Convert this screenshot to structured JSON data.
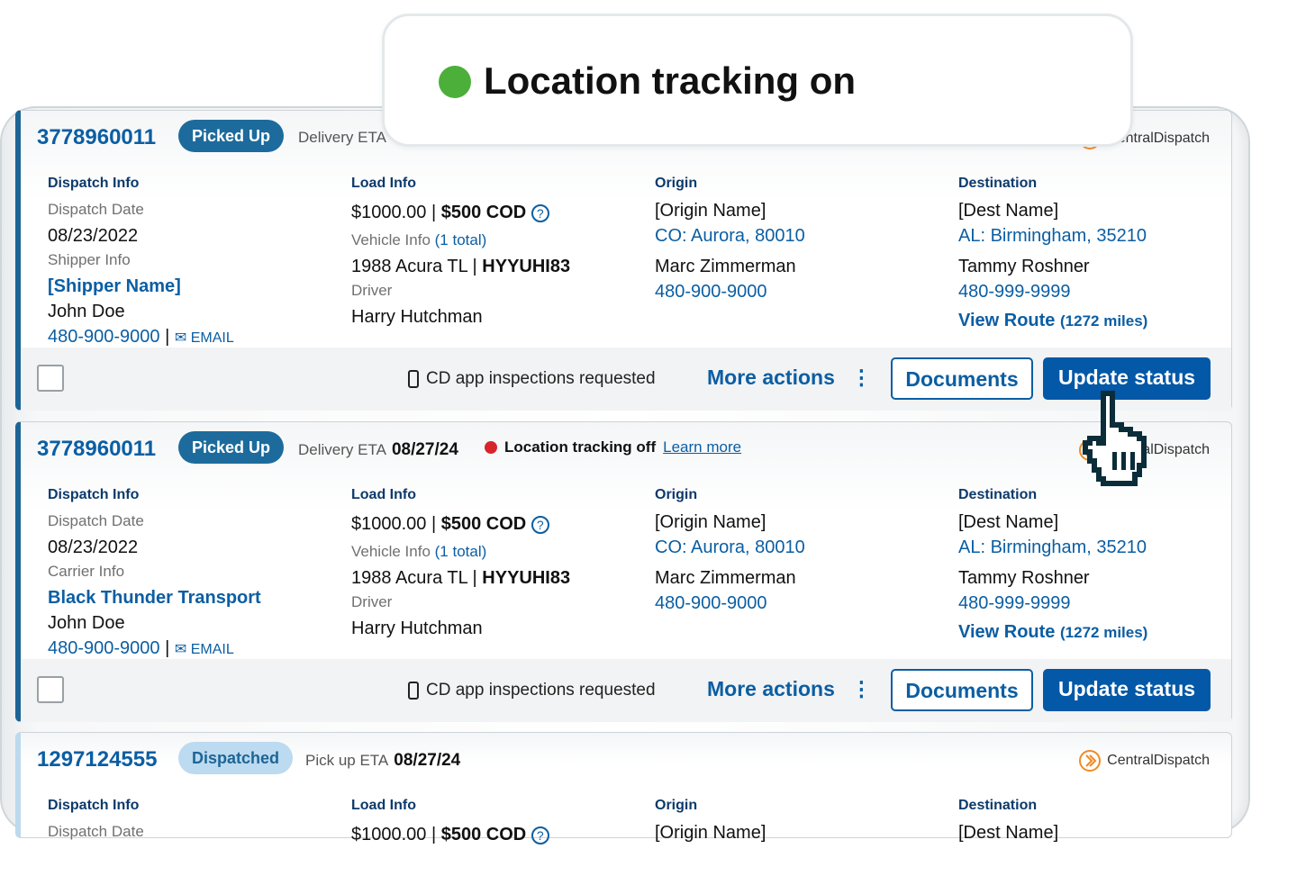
{
  "popup": {
    "text": "Location tracking on",
    "dot_color": "#4caf3a"
  },
  "cards": [
    {
      "id": "3778960011",
      "status": "Picked Up",
      "status_style": "dark",
      "eta_label": "Delivery ETA",
      "provider": "CentralDispatch",
      "dispatch": {
        "heading": "Dispatch Info",
        "date_label": "Dispatch Date",
        "date": "08/23/2022",
        "party_label": "Shipper Info",
        "party_name": "[Shipper Name]",
        "contact": "John Doe",
        "phone": "480-900-9000",
        "email": "EMAIL"
      },
      "load": {
        "heading": "Load Info",
        "price": "$1000.00",
        "cod": "$500 COD",
        "vehicle_label": "Vehicle Info",
        "vehicle_count": "(1 total)",
        "vehicle": "1988 Acura TL",
        "plate": "HYYUHI83",
        "driver_label": "Driver",
        "driver": "Harry Hutchman"
      },
      "origin": {
        "heading": "Origin",
        "name": "[Origin Name]",
        "location": "CO: Aurora, 80010",
        "contact": "Marc Zimmerman",
        "phone": "480-900-9000"
      },
      "destination": {
        "heading": "Destination",
        "name": "[Dest Name]",
        "location": "AL: Birmingham, 35210",
        "contact": "Tammy Roshner",
        "phone": "480-999-9999",
        "route": "View Route",
        "miles": "(1272 miles)"
      },
      "footer": {
        "inspections": "CD app inspections requested",
        "more": "More actions",
        "documents": "Documents",
        "update": "Update status"
      }
    },
    {
      "id": "3778960011",
      "status": "Picked Up",
      "status_style": "dark",
      "eta_label": "Delivery ETA",
      "eta_value": "08/27/24",
      "tracking": {
        "text": "Location tracking off",
        "link": "Learn more",
        "dot_color": "#d7262b"
      },
      "provider": "CentralDispatch",
      "dispatch": {
        "heading": "Dispatch Info",
        "date_label": "Dispatch Date",
        "date": "08/23/2022",
        "party_label": "Carrier Info",
        "party_name": "Black Thunder Transport",
        "contact": "John Doe",
        "phone": "480-900-9000",
        "email": "EMAIL"
      },
      "load": {
        "heading": "Load Info",
        "price": "$1000.00",
        "cod": "$500 COD",
        "vehicle_label": "Vehicle Info",
        "vehicle_count": "(1 total)",
        "vehicle": "1988 Acura TL",
        "plate": "HYYUHI83",
        "driver_label": "Driver",
        "driver": "Harry Hutchman"
      },
      "origin": {
        "heading": "Origin",
        "name": "[Origin Name]",
        "location": "CO: Aurora, 80010",
        "contact": "Marc Zimmerman",
        "phone": "480-900-9000"
      },
      "destination": {
        "heading": "Destination",
        "name": "[Dest Name]",
        "location": "AL: Birmingham, 35210",
        "contact": "Tammy Roshner",
        "phone": "480-999-9999",
        "route": "View Route",
        "miles": "(1272 miles)"
      },
      "footer": {
        "inspections": "CD app inspections requested",
        "more": "More actions",
        "documents": "Documents",
        "update": "Update status"
      }
    },
    {
      "id": "1297124555",
      "status": "Dispatched",
      "status_style": "light",
      "eta_label": "Pick up ETA",
      "eta_value": "08/27/24",
      "provider": "CentralDispatch",
      "dispatch": {
        "heading": "Dispatch Info",
        "date_label": "Dispatch Date"
      },
      "load": {
        "heading": "Load Info",
        "price": "$1000.00",
        "cod": "$500 COD"
      },
      "origin": {
        "heading": "Origin",
        "name": "[Origin Name]"
      },
      "destination": {
        "heading": "Destination",
        "name": "[Dest Name]"
      }
    }
  ],
  "colors": {
    "accent": "#0b5ea3",
    "primary_button": "#0358a7",
    "status_pill": "#1d6b9c",
    "provider_logo": "#f08a24"
  }
}
